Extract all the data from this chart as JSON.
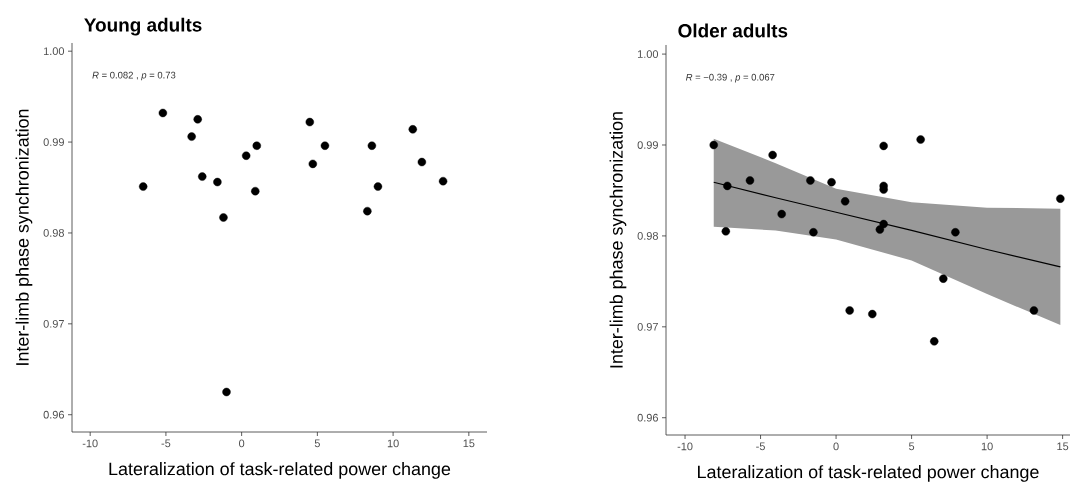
{
  "chart_data": [
    {
      "type": "scatter",
      "title": "Young adults",
      "xlabel": "Lateralization of task-related power change",
      "ylabel": "Inter-limb phase synchronization",
      "annotations": [
        "*R* = 0.082 , *p* = 0.73"
      ],
      "xlim": [
        -11.2,
        16.2
      ],
      "ylim": [
        0.9581,
        1.0009
      ],
      "xticks": [
        -10,
        -5,
        0,
        5,
        10,
        15
      ],
      "yticks": [
        0.96,
        0.97,
        0.98,
        0.99,
        {
          "value": 1.0,
          "label": "1.00"
        }
      ],
      "series": [
        {
          "color": "#000000",
          "marker": "circle",
          "x": [
            -6.5,
            -5.2,
            -2.9,
            -3.3,
            -2.6,
            -1.6,
            -1.2,
            -1.0,
            0.3,
            1.0,
            0.9,
            4.5,
            4.7,
            5.5,
            8.6,
            8.3,
            9.0,
            11.3,
            11.9,
            13.3
          ],
          "values": [
            0.9851,
            0.9932,
            0.9925,
            0.9906,
            0.9862,
            0.9856,
            0.9817,
            0.9625,
            0.9885,
            0.9896,
            0.9846,
            0.9922,
            0.9876,
            0.9896,
            0.9896,
            0.9824,
            0.9851,
            0.9914,
            0.9878,
            0.9857
          ]
        }
      ]
    },
    {
      "type": "scatter",
      "title": "Older adults",
      "xlabel": "Lateralization of task-related power change",
      "ylabel": "Inter-limb phase synchronization",
      "annotations": [
        "*R* = −0.39 , *p* = 0.067"
      ],
      "xlim": [
        -11.26,
        15.49
      ],
      "ylim": [
        0.9581,
        1.001
      ],
      "xticks": [
        -10,
        -5,
        0,
        5,
        10,
        15
      ],
      "yticks": [
        0.96,
        0.97,
        0.98,
        0.99,
        {
          "value": 1.0,
          "label": "1.00"
        }
      ],
      "series": [
        {
          "type": "line",
          "color": "#000000",
          "marker": "none",
          "x": [
            -8.1,
            -4,
            0,
            5,
            10,
            14.85
          ],
          "values": [
            0.9859,
            0.9842,
            0.9826,
            0.9806,
            0.9785,
            0.9766
          ],
          "lower": [
            0.981,
            0.9806,
            0.9796,
            0.9773,
            0.9736,
            0.9702
          ],
          "upper": [
            0.9907,
            0.988,
            0.9852,
            0.9837,
            0.9831,
            0.983
          ]
        },
        {
          "color": "#000000",
          "marker": "circle",
          "x": [
            -8.1,
            -7.2,
            -7.3,
            -5.7,
            -4.2,
            -3.6,
            -1.7,
            -1.5,
            -0.3,
            0.6,
            0.9,
            2.4,
            2.9,
            3.15,
            3.15,
            3.15,
            3.15,
            5.6,
            6.5,
            7.1,
            7.9,
            13.1,
            14.85
          ],
          "values": [
            0.99,
            0.9855,
            0.9805,
            0.9861,
            0.9889,
            0.9824,
            0.9861,
            0.9804,
            0.9859,
            0.9838,
            0.9718,
            0.9714,
            0.9807,
            0.9813,
            0.9855,
            0.9851,
            0.9899,
            0.9906,
            0.9684,
            0.9753,
            0.9804,
            0.9718,
            0.9841
          ]
        }
      ]
    }
  ]
}
